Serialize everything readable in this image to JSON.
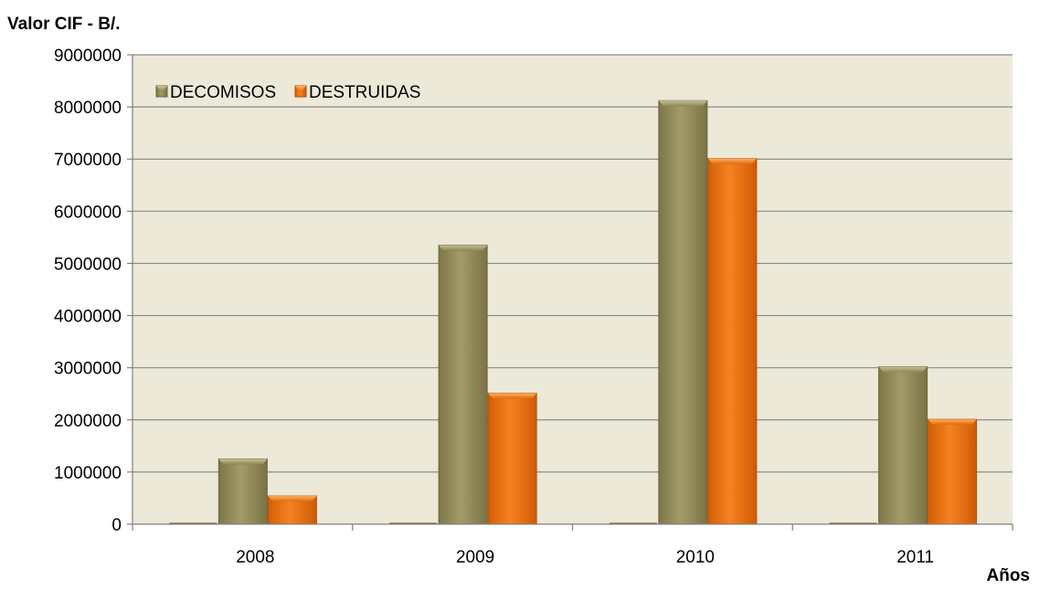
{
  "chart_data": {
    "type": "bar",
    "title": "",
    "ylabel": "Valor CIF - B/.",
    "xlabel": "Años",
    "categories": [
      "2008",
      "2009",
      "2010",
      "2011"
    ],
    "series": [
      {
        "name": "DECOMISOS",
        "values": [
          1250000,
          5350000,
          8120000,
          3020000
        ],
        "color": "#9b9360"
      },
      {
        "name": "DESTRUIDAS",
        "values": [
          540000,
          2510000,
          7010000,
          2010000
        ],
        "color": "#f07814"
      }
    ],
    "ylim": [
      0,
      9000000
    ],
    "yticks": [
      "0",
      "1000000",
      "2000000",
      "3000000",
      "4000000",
      "5000000",
      "6000000",
      "7000000",
      "8000000",
      "9000000"
    ],
    "grid": true,
    "legend_position": "top-left",
    "plot_background": "#ece9d9",
    "grid_color": "#8a8a8a"
  }
}
